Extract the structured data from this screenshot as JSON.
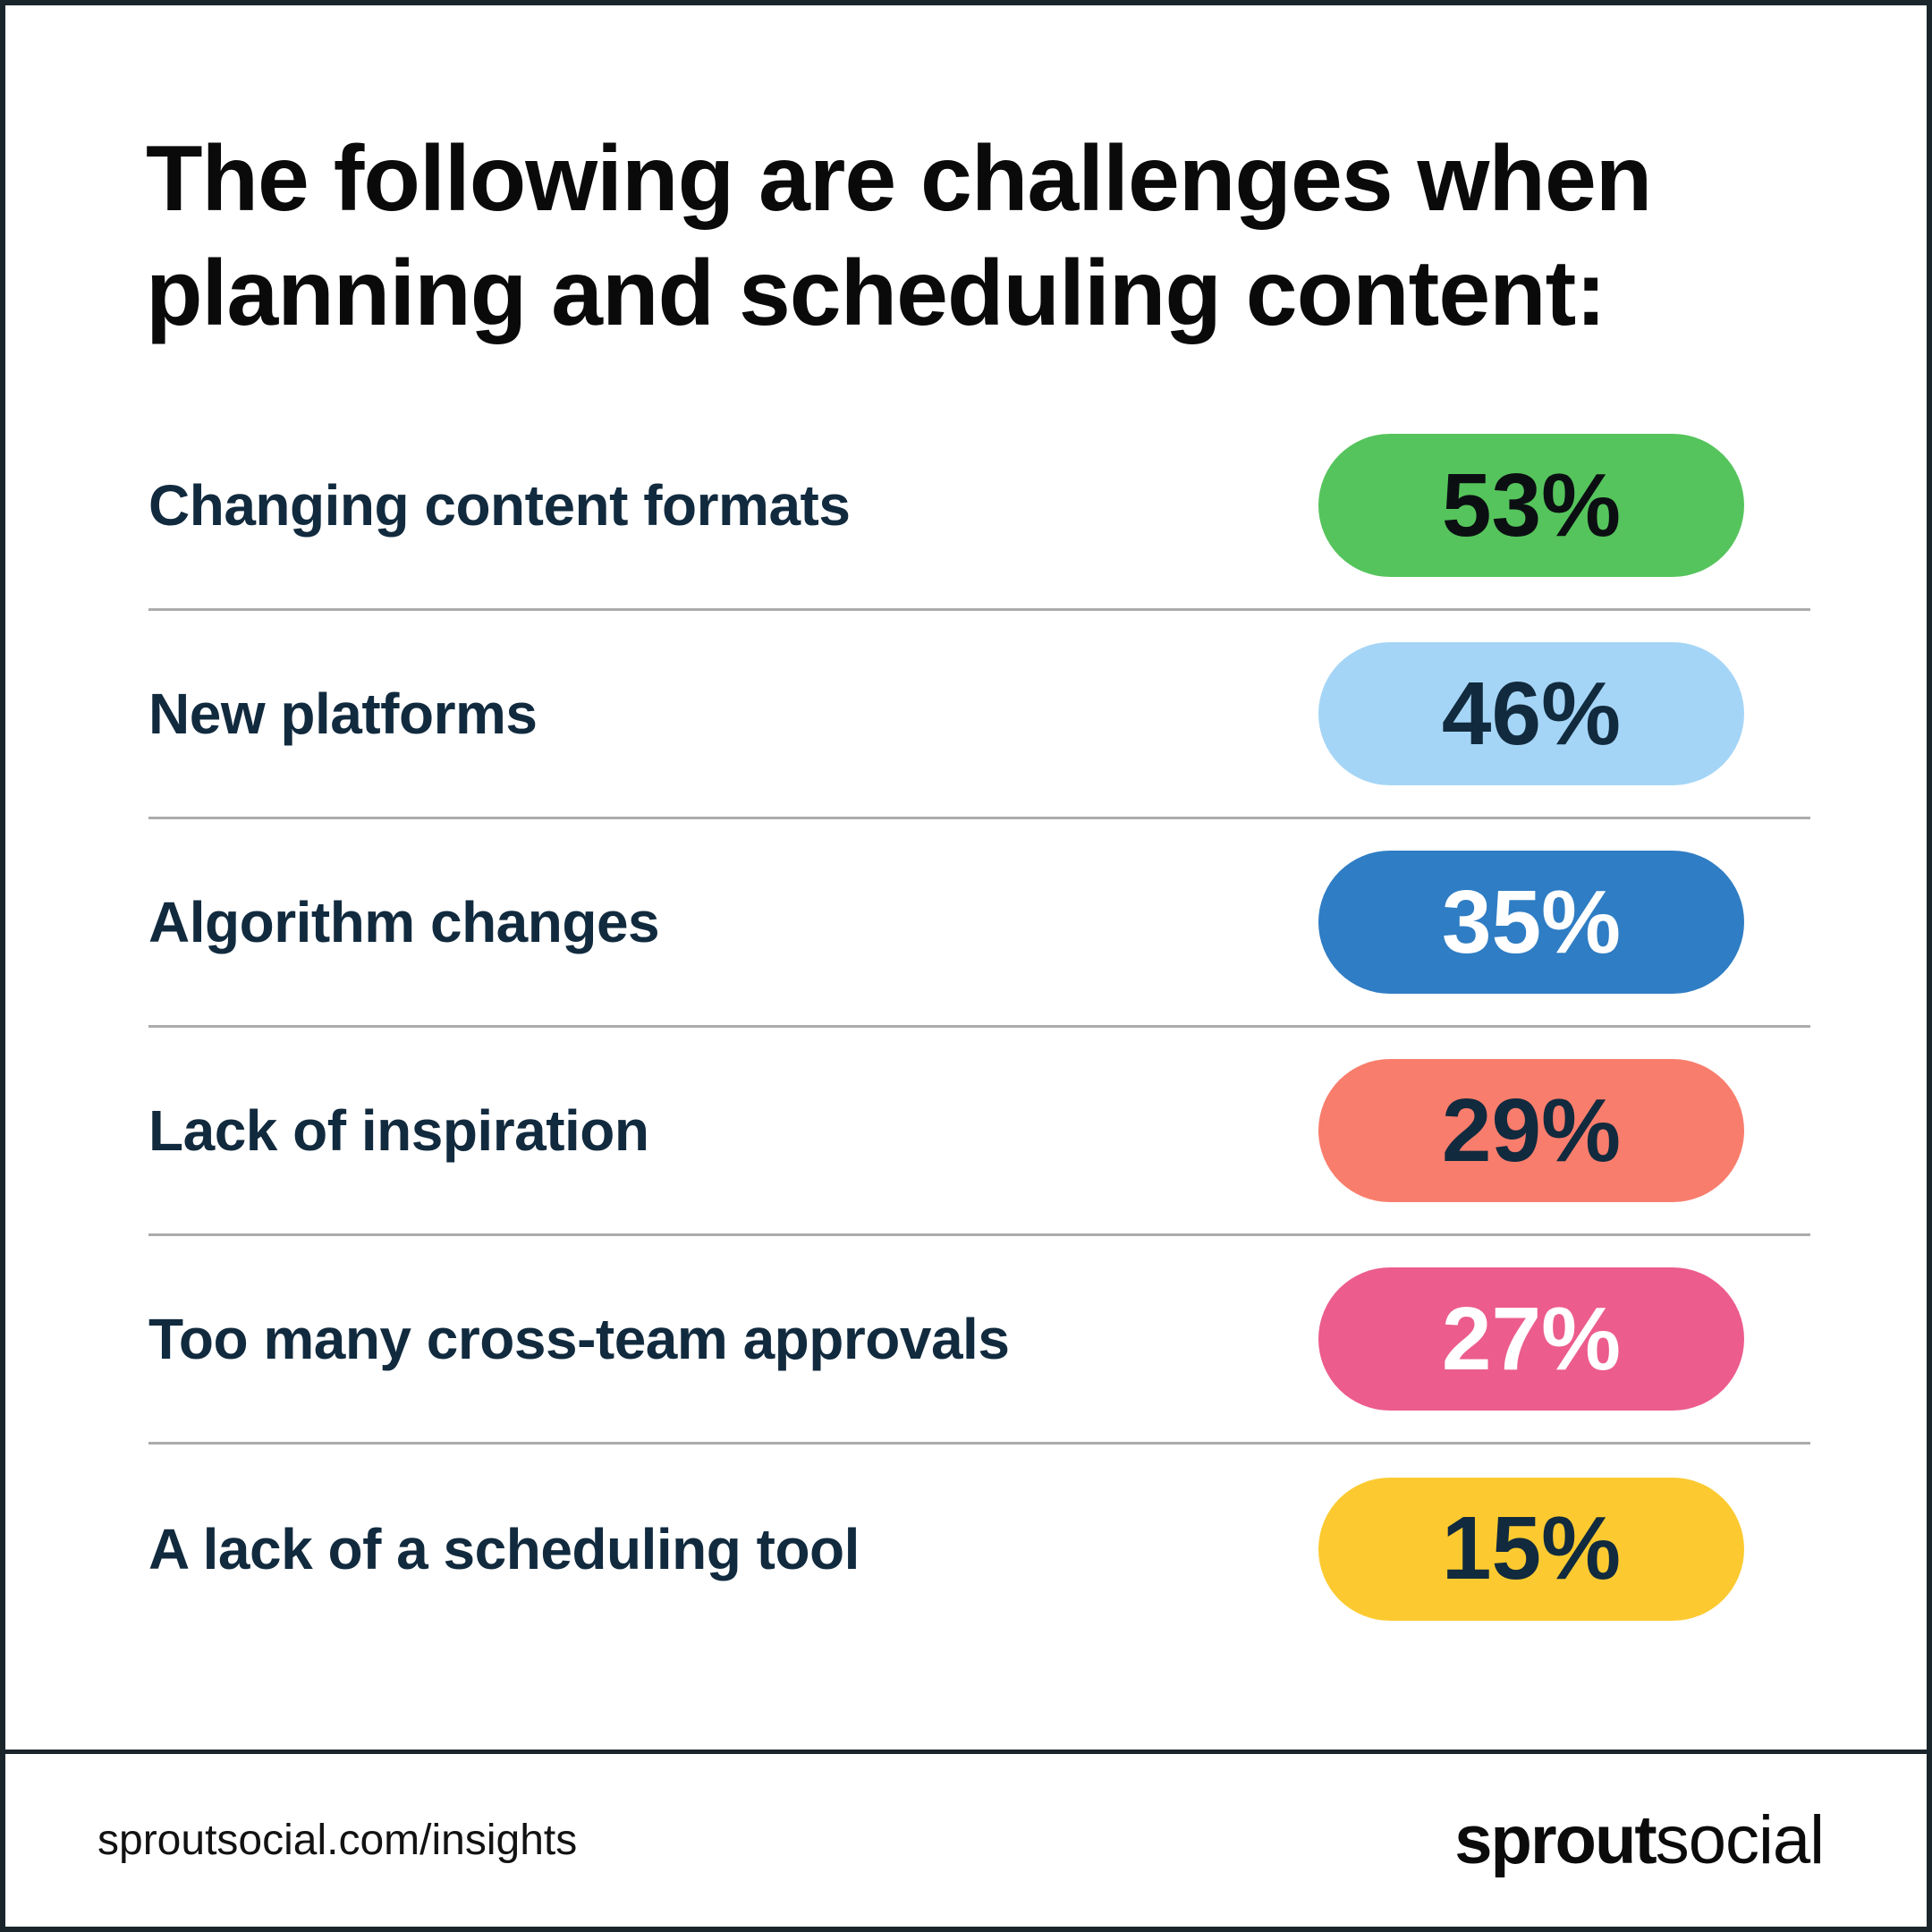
{
  "title": "The following are challenges when\nplanning and scheduling content:",
  "rows": [
    {
      "label": "Changing content formats",
      "value": "53%",
      "pill_color": "#55c45c",
      "value_color": "#0b0f12"
    },
    {
      "label": "New platforms",
      "value": "46%",
      "pill_color": "#a5d5f6",
      "value_color": "#112a3e"
    },
    {
      "label": "Algorithm changes",
      "value": "35%",
      "pill_color": "#2f7dc4",
      "value_color": "#ffffff"
    },
    {
      "label": "Lack of inspiration",
      "value": "29%",
      "pill_color": "#f97d6c",
      "value_color": "#112a3e"
    },
    {
      "label": "Too many cross-team approvals",
      "value": "27%",
      "pill_color": "#ec5c8d",
      "value_color": "#ffffff"
    },
    {
      "label": "A lack of a scheduling tool",
      "value": "15%",
      "pill_color": "#fcca30",
      "value_color": "#112a3e"
    }
  ],
  "footer": {
    "url": "sproutsocial.com/insights",
    "logo_bold": "sprout",
    "logo_light": "social"
  },
  "colors": {
    "frame": "#1a242b",
    "divider": "#acacac",
    "label_navy": "#112a3e",
    "title_black": "#0a0a0a",
    "background": "#ffffff"
  },
  "chart_data": {
    "type": "bar",
    "title": "The following are challenges when planning and scheduling content:",
    "categories": [
      "Changing content formats",
      "New platforms",
      "Algorithm changes",
      "Lack of inspiration",
      "Too many cross-team approvals",
      "A lack of a scheduling tool"
    ],
    "values": [
      53,
      46,
      35,
      29,
      27,
      15
    ],
    "unit": "%",
    "value_labels": [
      "53%",
      "46%",
      "35%",
      "29%",
      "27%",
      "15%"
    ],
    "bar_colors": [
      "#55c45c",
      "#a5d5f6",
      "#2f7dc4",
      "#f97d6c",
      "#ec5c8d",
      "#fcca30"
    ],
    "orientation": "horizontal",
    "legend": "none",
    "grid": "off",
    "source_text": "sproutsocial.com/insights"
  }
}
